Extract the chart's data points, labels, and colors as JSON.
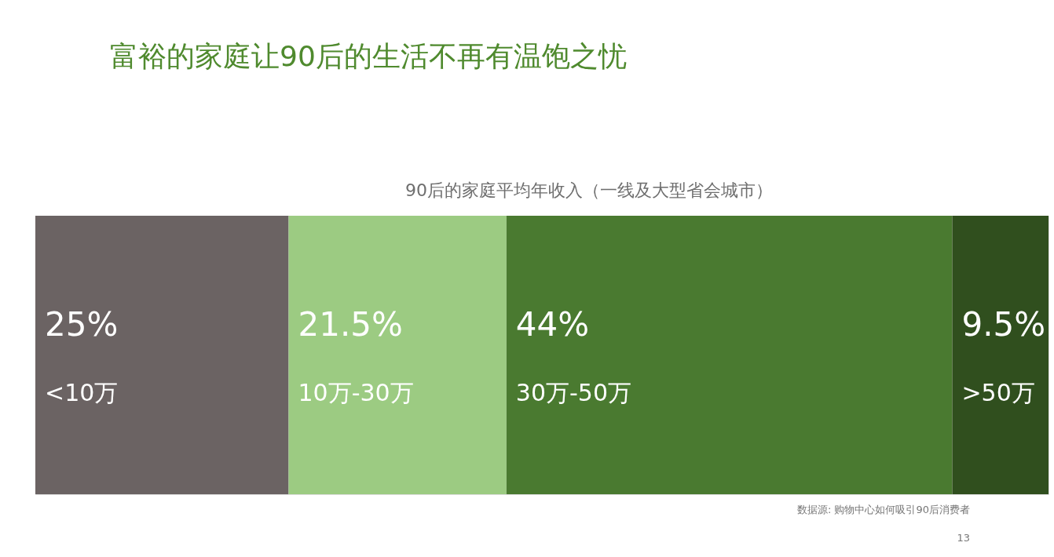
{
  "chart_data": {
    "type": "bar",
    "stacked": true,
    "orientation": "horizontal",
    "title": "富裕的家庭让90后的生活不再有温饱之忧",
    "subtitle": "90后的家庭平均年收入（一线及大型省会城市）",
    "categories": [
      null
    ],
    "xlim": [
      0,
      100
    ],
    "series": [
      {
        "name": "<10万",
        "color": "#6b6363",
        "values": [
          25
        ],
        "value_labels": [
          "25%"
        ]
      },
      {
        "name": "10万-30万",
        "color": "#9ccb82",
        "values": [
          21.5
        ],
        "value_labels": [
          "21.5%"
        ]
      },
      {
        "name": "30万-50万",
        "color": "#4a7a30",
        "values": [
          44
        ],
        "value_labels": [
          "44%"
        ]
      },
      {
        "name": ">50万",
        "color": "#304f1e",
        "values": [
          9.5
        ],
        "value_labels": [
          "9.5%"
        ]
      }
    ],
    "annotations": [
      "数据源: 购物中心如何吸引90后消费者",
      "13"
    ]
  }
}
